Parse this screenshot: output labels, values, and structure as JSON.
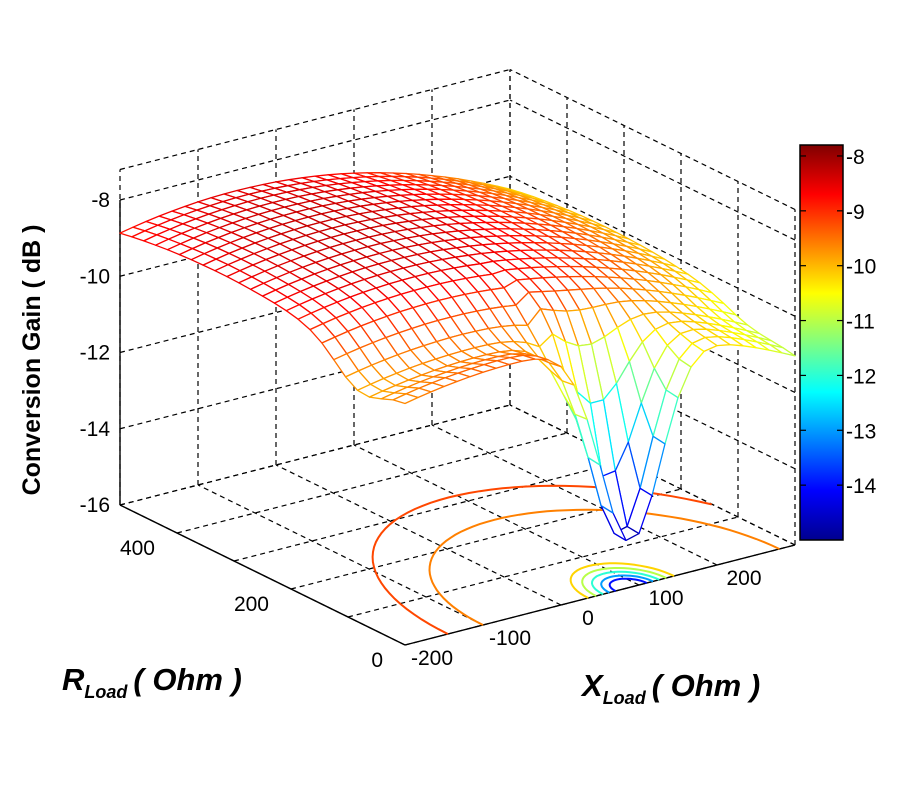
{
  "chart_data": {
    "type": "surface",
    "title": "",
    "zlabel": "Conversion Gain ( dB )",
    "xlabel": {
      "main": "X",
      "sub": "Load",
      "unit": "( Ohm )"
    },
    "ylabel": {
      "main": "R",
      "sub": "Load",
      "unit": "( Ohm )"
    },
    "x_ticks": [
      "-200",
      "-100",
      "0",
      "100",
      "200"
    ],
    "y_ticks": [
      "0",
      "200",
      "400"
    ],
    "z_ticks": [
      "-8",
      "-10",
      "-12",
      "-14",
      "-16"
    ],
    "xlim": [
      -250,
      250
    ],
    "ylim": [
      0,
      500
    ],
    "zlim": [
      -16,
      -7
    ],
    "colorbar": {
      "ticks": [
        "-8",
        "-9",
        "-10",
        "-11",
        "-12",
        "-13",
        "-14"
      ],
      "range": [
        -15,
        -7.8
      ],
      "colormap": "jet"
    },
    "surface_model": {
      "peak_gain_db": -8.0,
      "min_gain_db": -15.0,
      "notch_center_x": 40,
      "notch_center_r": 10,
      "samples": "approximate reading of displayed mesh"
    },
    "contour_levels": [
      -9,
      -10,
      -11,
      -12,
      -13,
      -14
    ],
    "grid": true
  }
}
